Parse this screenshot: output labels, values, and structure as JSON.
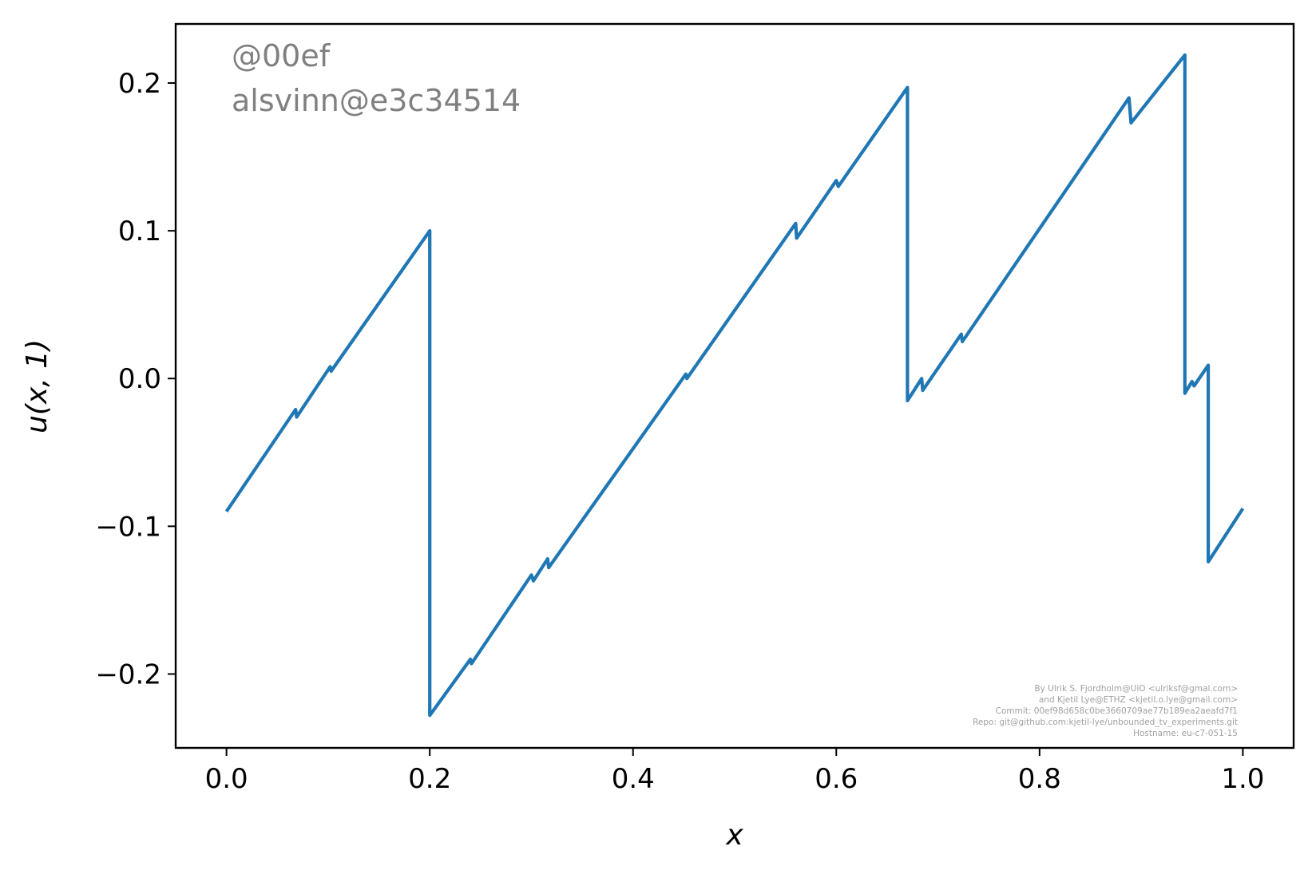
{
  "watermark": {
    "line1": "@00ef",
    "line2": "alsvinn@e3c34514"
  },
  "credits": [
    "By Ulrik S. Fjordholm@UiO <ulriksf@gmal.com>",
    "and Kjetil Lye@ETHZ <kjetil.o.lye@gmail.com>",
    "Commit: 00ef98d658c0be3660709ae77b189ea2aeafd7f1",
    "Repo: git@github.com:kjetil-lye/unbounded_tv_experiments.git",
    "Hostname: eu-c7-051-15"
  ],
  "chart_data": {
    "type": "line",
    "xlabel": "x",
    "ylabel": "u(x, 1)",
    "xlim": [
      -0.05,
      1.05
    ],
    "ylim": [
      -0.25,
      0.24
    ],
    "xticks": [
      0.0,
      0.2,
      0.4,
      0.6,
      0.8,
      1.0
    ],
    "xtick_labels": [
      "0.0",
      "0.2",
      "0.4",
      "0.6",
      "0.8",
      "1.0"
    ],
    "yticks": [
      -0.2,
      -0.1,
      0.0,
      0.1,
      0.2
    ],
    "ytick_labels": [
      "−0.2",
      "−0.1",
      "0.0",
      "0.1",
      "0.2"
    ],
    "color": "#1f77b4",
    "series": [
      {
        "x": [
          0.0,
          0.064,
          0.068,
          0.069,
          0.102,
          0.103,
          0.2,
          0.2,
          0.24,
          0.241,
          0.3,
          0.302,
          0.316,
          0.317,
          0.452,
          0.453,
          0.56,
          0.561,
          0.6,
          0.602,
          0.67,
          0.67,
          0.684,
          0.685,
          0.723,
          0.724,
          0.888,
          0.89,
          0.943,
          0.943,
          0.95,
          0.952,
          0.966,
          0.966,
          1.0
        ],
        "y": [
          -0.09,
          -0.025,
          -0.021,
          -0.026,
          0.008,
          0.005,
          0.1,
          -0.228,
          -0.19,
          -0.193,
          -0.133,
          -0.137,
          -0.122,
          -0.128,
          0.003,
          0.0,
          0.105,
          0.095,
          0.134,
          0.13,
          0.197,
          -0.015,
          0.0,
          -0.008,
          0.03,
          0.025,
          0.19,
          0.173,
          0.219,
          -0.01,
          -0.002,
          -0.005,
          0.009,
          -0.124,
          -0.088
        ]
      }
    ]
  }
}
